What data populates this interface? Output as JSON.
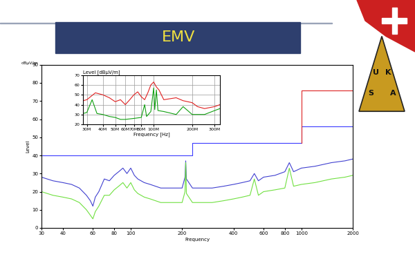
{
  "slide_title": "EMV",
  "logo": "USKA",
  "chart_data": [
    {
      "type": "line",
      "y_label": "Level",
      "unit": "dBµV/m",
      "x_label": "Frequency",
      "log": "x",
      "grid": false,
      "xlim": [
        30,
        2000
      ],
      "xticks": [
        30,
        40,
        60,
        80,
        100,
        200,
        400,
        600,
        800,
        1000,
        2000
      ],
      "ylim": [
        0,
        90
      ],
      "yticks": [
        0,
        10,
        20,
        30,
        40,
        50,
        60,
        70,
        80,
        90
      ],
      "series": [
        {
          "color": "#4040d0",
          "x": [
            30,
            35,
            40,
            45,
            50,
            55,
            58,
            60,
            62,
            65,
            70,
            75,
            80,
            85,
            90,
            95,
            100,
            105,
            110,
            120,
            130,
            150,
            170,
            200,
            208,
            210,
            212,
            230,
            260,
            300,
            350,
            400,
            450,
            500,
            530,
            560,
            600,
            700,
            800,
            850,
            900,
            1000,
            1200,
            1500,
            1800,
            2000
          ],
          "values": [
            28,
            26,
            25,
            24,
            22,
            18,
            15,
            12,
            17,
            20,
            27,
            26,
            29,
            31,
            33,
            30,
            33,
            29,
            27,
            25,
            24,
            22,
            22,
            22,
            28,
            37,
            27,
            22,
            22,
            22,
            23,
            24,
            25,
            26,
            30,
            26,
            28,
            29,
            31,
            36,
            31,
            33,
            34,
            36,
            37,
            38
          ]
        },
        {
          "color": "#70e040",
          "x": [
            30,
            35,
            40,
            45,
            50,
            55,
            58,
            60,
            62,
            65,
            70,
            75,
            80,
            85,
            90,
            95,
            100,
            105,
            110,
            120,
            130,
            150,
            170,
            200,
            208,
            210,
            212,
            230,
            260,
            300,
            350,
            400,
            450,
            500,
            530,
            560,
            600,
            700,
            800,
            850,
            900,
            1000,
            1200,
            1500,
            1800,
            2000
          ],
          "values": [
            20,
            18,
            17,
            16,
            14,
            10,
            7,
            5,
            9,
            12,
            18,
            18,
            21,
            23,
            25,
            22,
            25,
            21,
            19,
            17,
            16,
            14,
            14,
            14,
            20,
            36,
            19,
            14,
            14,
            14,
            15,
            16,
            17,
            18,
            27,
            18,
            20,
            21,
            22,
            33,
            23,
            24,
            25,
            27,
            28,
            29
          ]
        },
        {
          "color": "#3a3aff",
          "x": [
            30,
            230,
            230,
            1000,
            1000,
            2000
          ],
          "values": [
            40,
            40,
            47,
            47,
            56,
            56
          ]
        },
        {
          "color": "#dd2222",
          "x": [
            1000,
            1000,
            2000
          ],
          "values": [
            47,
            76,
            76
          ]
        }
      ]
    },
    {
      "type": "line",
      "title": "Level [dBµV/m]",
      "x_label": "Frequency [Hz]",
      "log": "x",
      "grid": true,
      "xlim": [
        28000000,
        330000000
      ],
      "xticks": [
        {
          "value": 30000000,
          "label": "30M"
        },
        {
          "value": 40000000,
          "label": "40M"
        },
        {
          "value": 50000000,
          "label": "50M"
        },
        {
          "value": 60000000,
          "label": "60M"
        },
        {
          "value": 70000000,
          "label": "70M"
        },
        {
          "value": 80000000,
          "label": "80M"
        },
        {
          "value": 100000000,
          "label": "100M"
        },
        {
          "value": 200000000,
          "label": "200M"
        },
        {
          "value": 300000000,
          "label": "300M"
        }
      ],
      "ylim": [
        20,
        70
      ],
      "yticks": [
        20,
        30,
        40,
        50,
        60,
        70
      ],
      "series": [
        {
          "color": "#e02020",
          "x": [
            28000000,
            30000000,
            35000000,
            40000000,
            45000000,
            50000000,
            55000000,
            60000000,
            65000000,
            70000000,
            75000000,
            80000000,
            85000000,
            90000000,
            95000000,
            100000000,
            105000000,
            110000000,
            120000000,
            150000000,
            170000000,
            200000000,
            220000000,
            250000000,
            300000000,
            330000000
          ],
          "values": [
            44,
            45,
            52,
            50,
            47,
            43,
            45,
            40,
            45,
            50,
            53,
            48,
            45,
            52,
            60,
            63,
            58,
            55,
            45,
            47,
            44,
            42,
            38,
            36,
            38,
            40
          ]
        },
        {
          "color": "#10a010",
          "x": [
            28000000,
            30000000,
            33000000,
            36000000,
            40000000,
            45000000,
            50000000,
            55000000,
            60000000,
            70000000,
            80000000,
            85000000,
            88000000,
            95000000,
            100000000,
            102000000,
            105000000,
            108000000,
            120000000,
            150000000,
            170000000,
            200000000,
            250000000,
            300000000,
            330000000
          ],
          "values": [
            31,
            32,
            45,
            31,
            30,
            28,
            27,
            25,
            25,
            26,
            27,
            40,
            28,
            33,
            57,
            35,
            55,
            34,
            33,
            30,
            38,
            30,
            30,
            34,
            36
          ]
        }
      ]
    }
  ]
}
